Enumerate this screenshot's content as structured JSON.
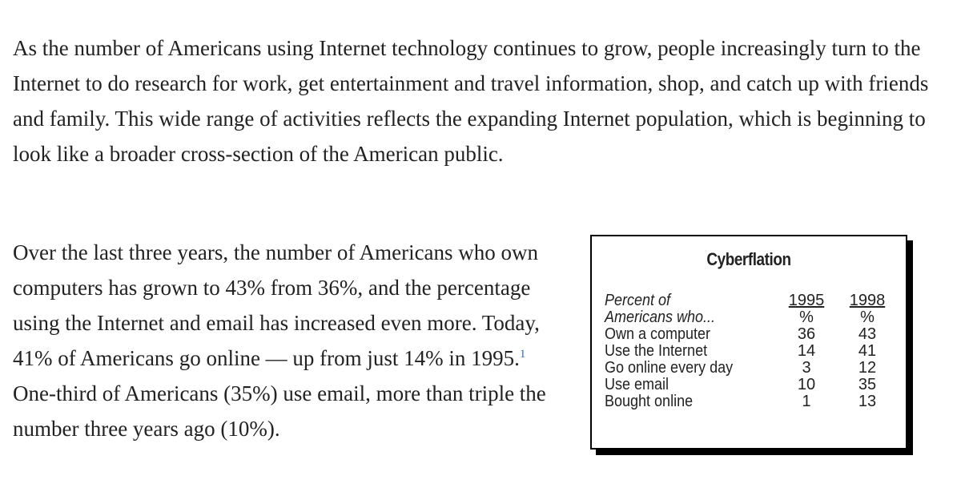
{
  "article": {
    "paragraph1": "As the number of Americans using Internet technology continues to grow, people increasingly turn to the Internet to do research for work, get entertainment and travel information, shop, and catch up with friends and family. This wide range of activities reflects the expanding Internet population, which is beginning to look like a broader cross-section of the American public.",
    "paragraph2_before_note": "Over the last three years, the number of Americans who own computers has grown to 43% from 36%, and the percentage using the Internet and email has increased even more. Today, 41% of Americans go online — up from just 14% in 1995.",
    "footnote_marker": "1",
    "paragraph2_after_note": " One-third of Americans (35%) use email, more than triple the number three years ago (10%)."
  },
  "table": {
    "title": "Cyberflation",
    "header_label_1": "Percent of",
    "header_label_2": "Americans who...",
    "col1_year": "1995",
    "col2_year": "1998",
    "unit1": "%",
    "unit2": "%",
    "rows": [
      {
        "label": "Own a computer",
        "v1995": "36",
        "v1998": "43"
      },
      {
        "label": "Use the Internet",
        "v1995": "14",
        "v1998": "41"
      },
      {
        "label": "Go online every day",
        "v1995": "3",
        "v1998": "12"
      },
      {
        "label": "Use email",
        "v1995": "10",
        "v1998": "35"
      },
      {
        "label": "Bought online",
        "v1995": "1",
        "v1998": "13"
      }
    ]
  }
}
